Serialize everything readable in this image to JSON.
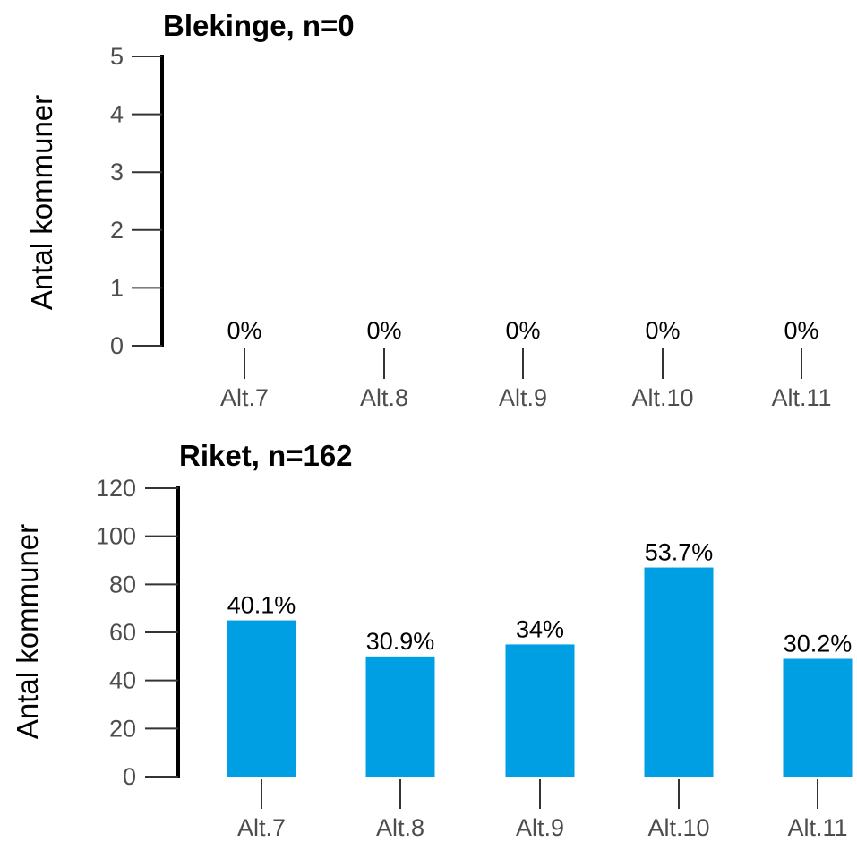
{
  "chart_data": [
    {
      "type": "bar",
      "title": "Blekinge, n=0",
      "ylabel": "Antal kommuner",
      "xlabel": "",
      "categories": [
        "Alt.7",
        "Alt.8",
        "Alt.9",
        "Alt.10",
        "Alt.11"
      ],
      "values": [
        0,
        0,
        0,
        0,
        0
      ],
      "labels": [
        "0%",
        "0%",
        "0%",
        "0%",
        "0%"
      ],
      "ylim": [
        0,
        5
      ],
      "yticks": [
        "0",
        "1",
        "2",
        "3",
        "4",
        "5"
      ],
      "bar_color": "#009FE3",
      "grid": false
    },
    {
      "type": "bar",
      "title": "Riket, n=162",
      "ylabel": "Antal kommuner",
      "xlabel": "",
      "categories": [
        "Alt.7",
        "Alt.8",
        "Alt.9",
        "Alt.10",
        "Alt.11"
      ],
      "values": [
        65,
        50,
        55,
        87,
        49
      ],
      "labels": [
        "40.1%",
        "30.9%",
        "34%",
        "53.7%",
        "30.2%"
      ],
      "ylim": [
        0,
        120
      ],
      "yticks": [
        "0",
        "20",
        "40",
        "60",
        "80",
        "100",
        "120"
      ],
      "bar_color": "#009FE3",
      "grid": false
    }
  ]
}
